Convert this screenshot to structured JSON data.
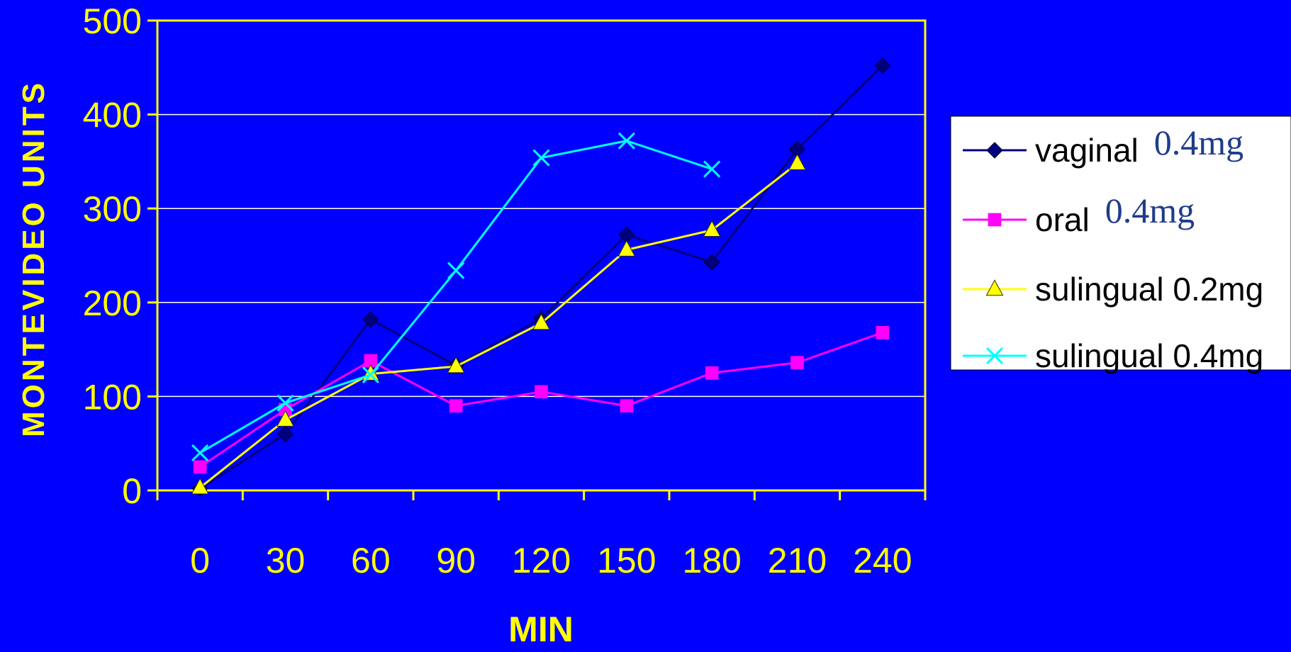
{
  "chart_data": {
    "type": "line",
    "xlabel": "MIN",
    "ylabel": "MONTEVIDEO UNITS",
    "x": [
      0,
      30,
      60,
      90,
      120,
      150,
      180,
      210,
      240
    ],
    "ylim": [
      0,
      500
    ],
    "yticks": [
      0,
      100,
      200,
      300,
      400,
      500
    ],
    "grid": true,
    "legend_position": "right",
    "colors": {
      "background": "#0000FF",
      "plot_border": "#FFFF00",
      "text": "#FFFF00",
      "gridline": "#FFFFFF",
      "legend_background": "#FFFFFF"
    },
    "series": [
      {
        "name": "vaginal",
        "dose_annotation": "0.4mg",
        "marker": "diamond",
        "color": "#00007F",
        "values": [
          2,
          60,
          182,
          133,
          183,
          272,
          243,
          363,
          452
        ]
      },
      {
        "name": "oral",
        "dose_annotation": "0.4mg",
        "marker": "square",
        "color": "#FF00FF",
        "values": [
          25,
          86,
          138,
          90,
          105,
          90,
          125,
          136,
          168
        ]
      },
      {
        "name": "sulingual 0.2mg",
        "marker": "triangle",
        "color": "#FFFF00",
        "values": [
          3,
          75,
          124,
          132,
          178,
          256,
          277,
          348,
          null
        ]
      },
      {
        "name": "sulingual 0.4mg",
        "marker": "x",
        "color": "#00FFFF",
        "values": [
          40,
          93,
          123,
          234,
          354,
          372,
          342,
          null,
          null
        ]
      }
    ]
  }
}
